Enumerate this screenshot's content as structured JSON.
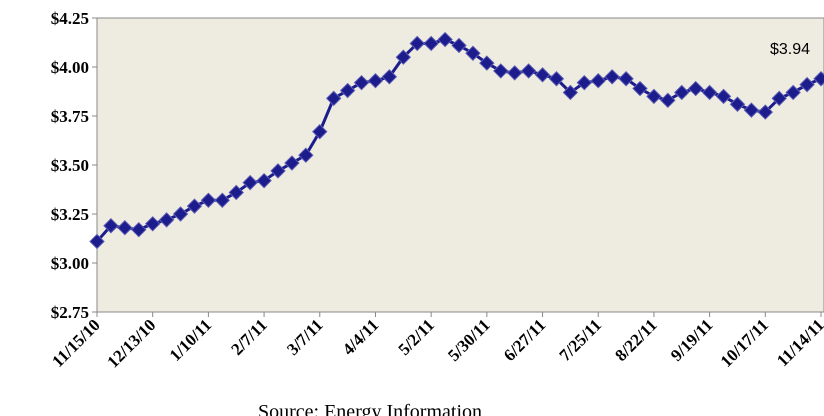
{
  "chart_data": {
    "type": "line",
    "categories": [
      "11/15/10",
      null,
      null,
      null,
      "12/13/10",
      null,
      null,
      null,
      "1/10/11",
      null,
      null,
      null,
      "2/7/11",
      null,
      null,
      null,
      "3/7/11",
      null,
      null,
      null,
      "4/4/11",
      null,
      null,
      null,
      "5/2/11",
      null,
      null,
      null,
      "5/30/11",
      null,
      null,
      null,
      "6/27/11",
      null,
      null,
      null,
      "7/25/11",
      null,
      null,
      null,
      "8/22/11",
      null,
      null,
      null,
      "9/19/11",
      null,
      null,
      null,
      "10/17/11",
      null,
      null,
      null,
      "11/14/11"
    ],
    "series": [
      {
        "name": null,
        "color": "#1c1c8c",
        "values": [
          3.11,
          3.19,
          3.18,
          3.17,
          3.2,
          3.22,
          3.25,
          3.29,
          3.32,
          3.32,
          3.36,
          3.41,
          3.42,
          3.47,
          3.51,
          3.55,
          3.67,
          3.84,
          3.88,
          3.92,
          3.93,
          3.95,
          4.05,
          4.12,
          4.12,
          4.14,
          4.11,
          4.07,
          4.02,
          3.98,
          3.97,
          3.98,
          3.96,
          3.94,
          3.87,
          3.92,
          3.93,
          3.95,
          3.94,
          3.89,
          3.85,
          3.83,
          3.87,
          3.89,
          3.87,
          3.85,
          3.81,
          3.78,
          3.77,
          3.84,
          3.87,
          3.91,
          3.94
        ]
      }
    ],
    "ylim": [
      2.75,
      4.25
    ],
    "yticks": [
      {
        "value": 2.75,
        "label": "$2.75"
      },
      {
        "value": 3.0,
        "label": "$3.00"
      },
      {
        "value": 3.25,
        "label": "$3.25"
      },
      {
        "value": 3.5,
        "label": "$3.50"
      },
      {
        "value": 3.75,
        "label": "$3.75"
      },
      {
        "value": 4.0,
        "label": "$4.00"
      },
      {
        "value": 4.25,
        "label": "$4.25"
      }
    ],
    "grid": false,
    "annotation": "$3.94",
    "source": "Source: Energy Information"
  }
}
